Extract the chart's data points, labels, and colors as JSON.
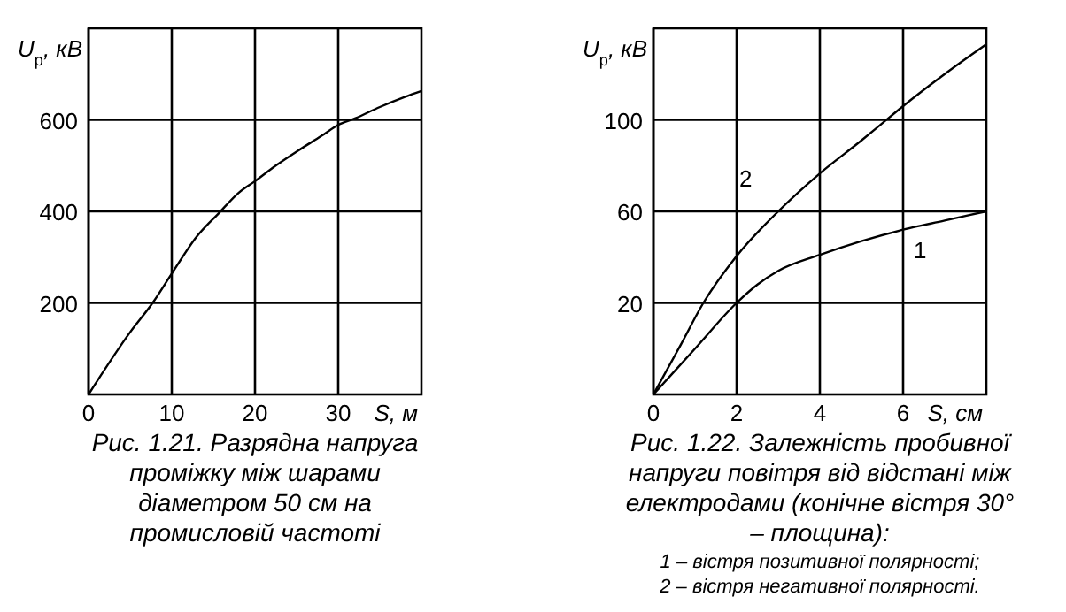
{
  "chart_data": [
    {
      "type": "line",
      "title": "Рис. 1.21. Разрядна напруга проміжку між шарами діаметром 50 см  на промисловій частоті",
      "xlabel": "S, м",
      "ylabel": "U$_{р}$, кВ",
      "xlim": [
        0,
        40
      ],
      "ylim": [
        0,
        800
      ],
      "xticks": [
        0,
        10,
        20,
        30
      ],
      "yticks": [
        200,
        400,
        600
      ],
      "grid": true,
      "series": [
        {
          "color": "#000000",
          "x": [
            0,
            5,
            7.7,
            10,
            13,
            15.6,
            18,
            20,
            22.5,
            25.2,
            28,
            30,
            32,
            35,
            38,
            40
          ],
          "values": [
            0,
            136,
            200,
            264,
            345,
            395,
            440,
            466,
            500,
            533,
            565,
            589,
            603,
            628,
            650,
            663
          ]
        }
      ]
    },
    {
      "type": "line",
      "title": "Рис. 1.22. Залежність пробивної напруги повітря від відстані між електродами (конічне вістря 30° – площина):",
      "annotations": [
        "1 – вістря позитивної полярності;",
        "2 – вістря негативної полярності."
      ],
      "xlabel": "S, см",
      "ylabel": "U$_{р}$, кВ",
      "xlim": [
        0,
        8
      ],
      "ylim": [
        -20,
        140
      ],
      "xticks": [
        0,
        2,
        4,
        6
      ],
      "yticks": [
        20,
        60,
        100
      ],
      "grid": true,
      "series": [
        {
          "name": "1",
          "color": "#000000",
          "x": [
            0,
            1,
            2,
            2.5,
            3,
            4,
            5,
            6,
            7,
            8
          ],
          "values": [
            -20,
            0,
            20,
            28,
            34,
            41,
            47,
            52,
            56,
            60
          ]
        },
        {
          "name": "2",
          "color": "#000000",
          "x": [
            0,
            0.66,
            1.2,
            2,
            3,
            4,
            5,
            5.5,
            6,
            7,
            8
          ],
          "values": [
            -20,
            1.8,
            20,
            40.5,
            60,
            76.6,
            91,
            98.5,
            106,
            120,
            133
          ]
        }
      ]
    }
  ]
}
